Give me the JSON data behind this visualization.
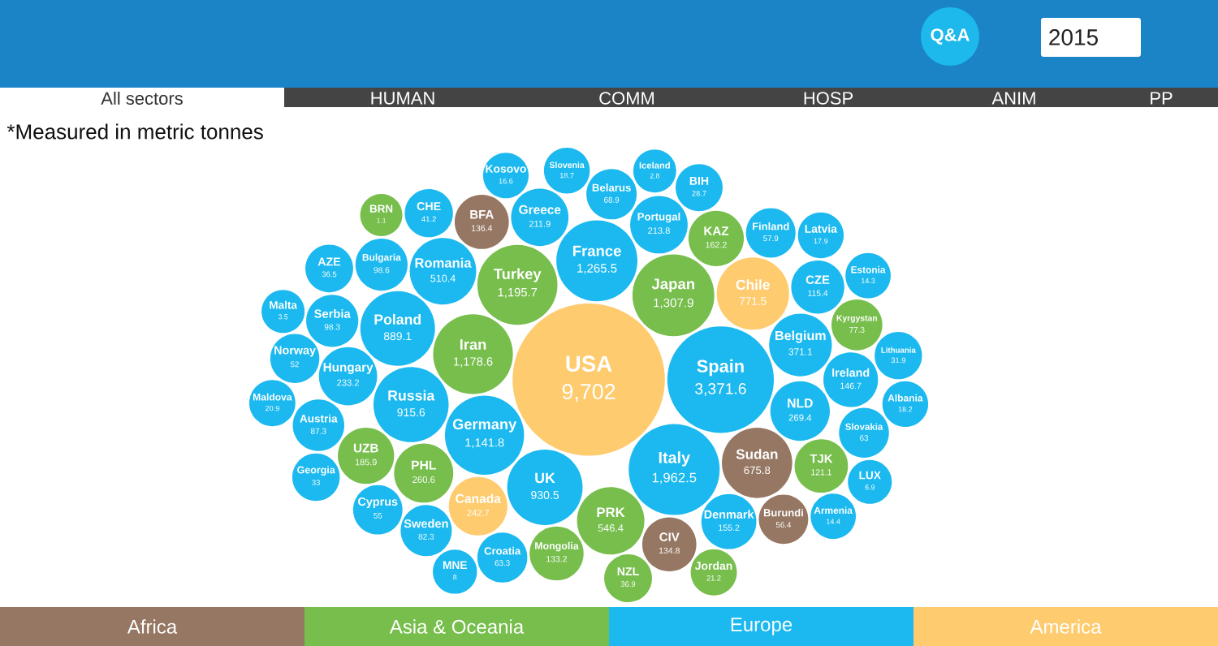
{
  "chart_data": {
    "type": "other",
    "categories": [
      "Sudan",
      "BFA",
      "CIV",
      "Burundi",
      "PHL",
      "Japan",
      "NZL",
      "PRK",
      "TJK",
      "BRN",
      "KAZ",
      "Jordan",
      "Kyrgystan",
      "UZB",
      "Turkey",
      "Iran",
      "Mongolia",
      "CZE",
      "Slovakia",
      "BIH",
      "Portugal",
      "Poland",
      "NLD",
      "UK",
      "AZE",
      "MNE",
      "LUX",
      "Cyprus",
      "Norway",
      "Sweden",
      "Romania",
      "Greece",
      "Georgia",
      "Lithuania",
      "Albania",
      "Spain",
      "Austria",
      "Denmark",
      "Maldova",
      "Kosovo",
      "Serbia",
      "Finland",
      "Malta",
      "Germany",
      "Armenia",
      "CHE",
      "Belgium",
      "Bulgaria",
      "Russia",
      "Latvia",
      "Croatia",
      "Hungary",
      "Belarus",
      "Slovenia",
      "Italy",
      "Estonia",
      "France",
      "Ireland",
      "Iceland",
      "USA",
      "Chile",
      "Canada"
    ],
    "series": [
      {
        "name": "Africa",
        "color": "#967763",
        "values": [
          675.8,
          136.4,
          134.8,
          56.4,
          null,
          null,
          null,
          null,
          null,
          null,
          null,
          null,
          null,
          null,
          null,
          null,
          null,
          null,
          null,
          null,
          null,
          null,
          null,
          null,
          null,
          null,
          null,
          null,
          null,
          null,
          null,
          null,
          null,
          null,
          null,
          null,
          null,
          null,
          null,
          null,
          null,
          null,
          null,
          null,
          null,
          null,
          null,
          null,
          null,
          null,
          null,
          null,
          null,
          null,
          null,
          null,
          null,
          null,
          null,
          null,
          null,
          null
        ],
        "value_labels": [
          "675.8",
          "136.4",
          "134.8",
          "56.4",
          null,
          null,
          null,
          null,
          null,
          null,
          null,
          null,
          null,
          null,
          null,
          null,
          null,
          null,
          null,
          null,
          null,
          null,
          null,
          null,
          null,
          null,
          null,
          null,
          null,
          null,
          null,
          null,
          null,
          null,
          null,
          null,
          null,
          null,
          null,
          null,
          null,
          null,
          null,
          null,
          null,
          null,
          null,
          null,
          null,
          null,
          null,
          null,
          null,
          null,
          null,
          null,
          null,
          null,
          null,
          null,
          null,
          null
        ]
      },
      {
        "name": "Asia & Oceania",
        "color": "#77BE4D",
        "values": [
          null,
          null,
          null,
          null,
          260.6,
          1307.9,
          36.9,
          546.4,
          121.1,
          1.1,
          162.2,
          21.2,
          77.3,
          185.9,
          1195.7,
          1178.6,
          133.2,
          null,
          null,
          null,
          null,
          null,
          null,
          null,
          null,
          null,
          null,
          null,
          null,
          null,
          null,
          null,
          null,
          null,
          null,
          null,
          null,
          null,
          null,
          null,
          null,
          null,
          null,
          null,
          null,
          null,
          null,
          null,
          null,
          null,
          null,
          null,
          null,
          null,
          null,
          null,
          null,
          null,
          null,
          null,
          null,
          null
        ],
        "value_labels": [
          null,
          null,
          null,
          null,
          "260.6",
          "1,307.9",
          "36.9",
          "546.4",
          "121.1",
          "1.1",
          "162.2",
          "21.2",
          "77.3",
          "185.9",
          "1,195.7",
          "1,178.6",
          "133.2",
          null,
          null,
          null,
          null,
          null,
          null,
          null,
          null,
          null,
          null,
          null,
          null,
          null,
          null,
          null,
          null,
          null,
          null,
          null,
          null,
          null,
          null,
          null,
          null,
          null,
          null,
          null,
          null,
          null,
          null,
          null,
          null,
          null,
          null,
          null,
          null,
          null,
          null,
          null,
          null,
          null,
          null,
          null,
          null,
          null
        ]
      },
      {
        "name": "Europe",
        "color": "#1BB9EF",
        "values": [
          null,
          null,
          null,
          null,
          null,
          null,
          null,
          null,
          null,
          null,
          null,
          null,
          null,
          null,
          null,
          null,
          null,
          115.4,
          63,
          28.7,
          213.8,
          889.1,
          269.4,
          930.5,
          36.5,
          8,
          6.9,
          55,
          52,
          82.3,
          510.4,
          211.9,
          33,
          31.9,
          18.2,
          3371.6,
          87.3,
          155.2,
          20.9,
          16.6,
          98.3,
          57.9,
          3.5,
          1141.8,
          14.4,
          41.2,
          371.1,
          98.6,
          915.6,
          17.9,
          63.3,
          233.2,
          68.9,
          18.7,
          1962.5,
          14.3,
          1265.5,
          146.7,
          2.8,
          null,
          null,
          null
        ],
        "value_labels": [
          null,
          null,
          null,
          null,
          null,
          null,
          null,
          null,
          null,
          null,
          null,
          null,
          null,
          null,
          null,
          null,
          null,
          "115.4",
          "63",
          "28.7",
          "213.8",
          "889.1",
          "269.4",
          "930.5",
          "36.5",
          "8",
          "6.9",
          "55",
          "52",
          "82.3",
          "510.4",
          "211.9",
          "33",
          "31.9",
          "18.2",
          "3,371.6",
          "87.3",
          "155.2",
          "20.9",
          "16.6",
          "98.3",
          "57.9",
          "3.5",
          "1,141.8",
          "14.4",
          "41.2",
          "371.1",
          "98.6",
          "915.6",
          "17.9",
          "63.3",
          "233.2",
          "68.9",
          "18.7",
          "1,962.5",
          "14.3",
          "1,265.5",
          "146.7",
          "2.8",
          null,
          null,
          null
        ]
      },
      {
        "name": "America",
        "color": "#FECB6F",
        "values": [
          null,
          null,
          null,
          null,
          null,
          null,
          null,
          null,
          null,
          null,
          null,
          null,
          null,
          null,
          null,
          null,
          null,
          null,
          null,
          null,
          null,
          null,
          null,
          null,
          null,
          null,
          null,
          null,
          null,
          null,
          null,
          null,
          null,
          null,
          null,
          null,
          null,
          null,
          null,
          null,
          null,
          null,
          null,
          null,
          null,
          null,
          null,
          null,
          null,
          null,
          null,
          null,
          null,
          null,
          null,
          null,
          null,
          null,
          null,
          9702,
          771.5,
          242.7
        ],
        "value_labels": [
          null,
          null,
          null,
          null,
          null,
          null,
          null,
          null,
          null,
          null,
          null,
          null,
          null,
          null,
          null,
          null,
          null,
          null,
          null,
          null,
          null,
          null,
          null,
          null,
          null,
          null,
          null,
          null,
          null,
          null,
          null,
          null,
          null,
          null,
          null,
          null,
          null,
          null,
          null,
          null,
          null,
          null,
          null,
          null,
          null,
          null,
          null,
          null,
          null,
          null,
          null,
          null,
          null,
          null,
          null,
          null,
          null,
          null,
          null,
          "9,702",
          "771.5",
          "242.7"
        ]
      }
    ],
    "annotations": [
      "All sectors",
      "HUMAN",
      "COMM",
      "HOSP",
      "ANIM",
      "PP",
      "*Measured in metric tonnes",
      "Q&A",
      "2015"
    ],
    "legend": "bottom"
  }
}
